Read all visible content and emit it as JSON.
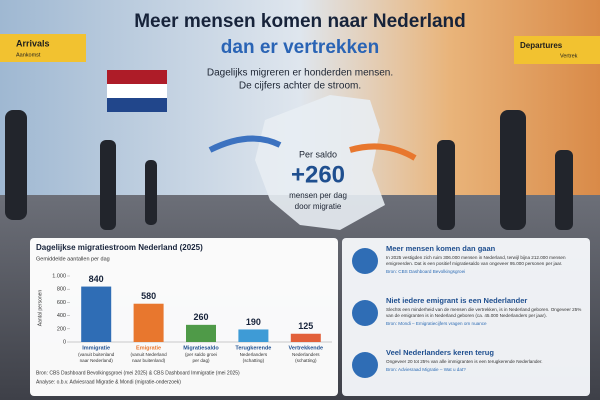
{
  "header": {
    "title_line1": "Meer mensen komen naar Nederland",
    "title_line2": "dan er vertrekken",
    "subtitle_line1": "Dagelijks migreren er honderden mensen.",
    "subtitle_line2": "De cijfers achter de stroom."
  },
  "signs": {
    "arrivals": "Arrivals",
    "arrivals_nl": "Aankomst",
    "departures": "Departures",
    "departures_nl": "Vertrek"
  },
  "balance": {
    "label": "Per saldo",
    "value": "+260",
    "caption_line1": "mensen per dag",
    "caption_line2": "door migratie"
  },
  "chart": {
    "title": "Dagelijkse migratiestroom Nederland (2025)",
    "subtitle": "Gemiddelde aantallen per dag",
    "y_label": "Aantal personen",
    "ylim": [
      0,
      1000
    ],
    "yticks": [
      0,
      200,
      400,
      600,
      800,
      {
        "value": 1000,
        "label": "1.000"
      }
    ],
    "bars": [
      {
        "name": "Immigratie",
        "notes": [
          "(vanuit buitenland",
          "naar Nederland)"
        ],
        "value": 840,
        "color": "#2f6db5"
      },
      {
        "name": "Emigratie",
        "notes": [
          "(vanuit Nederland",
          "naar buitenland)"
        ],
        "value": 580,
        "color": "#e8772e"
      },
      {
        "name": "Migratiesaldo",
        "notes": [
          "(per saldo groei",
          "per dag)"
        ],
        "value": 260,
        "color": "#4f9a48"
      },
      {
        "name": "Terugkerende",
        "notes": [
          "Nederlanders",
          "(schatting)"
        ],
        "value": 190,
        "color": "#3e9bd6"
      },
      {
        "name": "Vertrekkende",
        "notes": [
          "Nederlanders",
          "(schatting)"
        ],
        "value": 125,
        "color": "#e2603a"
      }
    ]
  },
  "sources": [
    "Bron: CBS Dashboard Bevolkingsgroei (mei 2025) & CBS Dashboard Immigratie (mei 2025)",
    "Analyse: o.b.v. Adviesraad Migratie & Mondi (migratie-onderzoek)"
  ],
  "facts": [
    {
      "title": "Meer mensen komen dan gaan",
      "body": "In 2025 vestigden zich ruim 306.000 mensen in Nederland, terwijl bijna 212.000 mensen emigreerden. Dat is een positief migratiesaldo van ongeveer 95.000 personen per jaar.",
      "source": "Bron: CBS Dashboard Bevolkingsgroei"
    },
    {
      "title": "Niet iedere emigrant is een Nederlander",
      "body": "Slechts een minderheid van de mensen die vertrekken, is in Nederland geboren. Ongeveer 25% van de emigranten is in Nederland geboren (ca. 45.000 Nederlanders per jaar).",
      "source": "Bron: Mondi – Emigratiecijfers vragen om nuance"
    },
    {
      "title": "Veel Nederlanders keren terug",
      "body": "Ongeveer 20 tot 25% van alle immigranten is een terugkerende Nederlander.",
      "source": "Bron: Adviesraad Migratie – Wat u dat?"
    }
  ]
}
